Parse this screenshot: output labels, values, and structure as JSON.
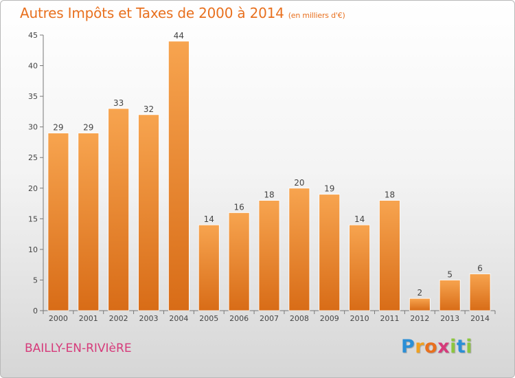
{
  "title": "Autres Impôts et Taxes de 2000 à 2014",
  "subtitle": "(en milliers d'€)",
  "commune": "BAILLY-EN-RIVIèRE",
  "logo": {
    "letters": [
      "P",
      "r",
      "o",
      "x",
      "i",
      "t",
      "i"
    ],
    "colors": [
      "#2b8fd6",
      "#f0a020",
      "#e8701e",
      "#d63a7a",
      "#8cc63f",
      "#2b8fd6",
      "#8cc63f"
    ]
  },
  "colors": {
    "bar_top": "#f7a44f",
    "bar_bottom": "#d86c17",
    "axis": "#777777",
    "grid": "#cccccc"
  },
  "chart_data": {
    "type": "bar",
    "categories": [
      "2000",
      "2001",
      "2002",
      "2003",
      "2004",
      "2005",
      "2006",
      "2007",
      "2008",
      "2009",
      "2010",
      "2011",
      "2012",
      "2013",
      "2014"
    ],
    "values": [
      29,
      29,
      33,
      32,
      44,
      14,
      16,
      18,
      20,
      19,
      14,
      18,
      2,
      5,
      6
    ],
    "data_labels": [
      "29",
      "29",
      "33",
      "32",
      "44",
      "14",
      "16",
      "18",
      "20",
      "19",
      "14",
      "18",
      "2",
      "5",
      "6"
    ],
    "yticks": [
      0,
      5,
      10,
      15,
      20,
      25,
      30,
      35,
      40,
      45
    ],
    "ytick_labels": [
      "0",
      "5",
      "10",
      "15",
      "20",
      "25",
      "30",
      "35",
      "40",
      "45"
    ],
    "ylim": [
      0,
      45
    ],
    "grid": false,
    "legend": "none"
  }
}
